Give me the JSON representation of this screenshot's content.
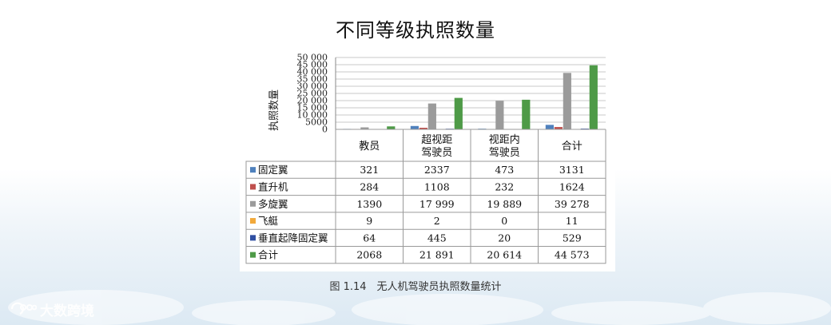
{
  "page": {
    "title": "不同等级执照数量",
    "caption": "图 1.14　无人机驾驶员执照数量统计",
    "watermark": "大数跨境"
  },
  "chart_data": {
    "type": "bar",
    "title": "不同等级执照数量",
    "xlabel": "",
    "ylabel": "执照数量",
    "ylim": [
      0,
      50000
    ],
    "yticks": [
      0,
      5000,
      10000,
      15000,
      20000,
      25000,
      30000,
      35000,
      40000,
      45000,
      50000
    ],
    "ytick_labels": [
      "0",
      "5000",
      "10 000",
      "15 000",
      "20 000",
      "25 000",
      "30 000",
      "35 000",
      "40 000",
      "45 000",
      "50 000"
    ],
    "grid": true,
    "legend": "table-left",
    "categories": [
      "教员",
      "超视距驾驶员",
      "视距内驾驶员",
      "合计"
    ],
    "category_labels": [
      [
        "教员"
      ],
      [
        "超视距",
        "驾驶员"
      ],
      [
        "视距内",
        "驾驶员"
      ],
      [
        "合计"
      ]
    ],
    "series": [
      {
        "name": "固定翼",
        "color": "#4f81bd",
        "values": [
          321,
          2337,
          473,
          3131
        ],
        "labels": [
          "321",
          "2337",
          "473",
          "3131"
        ]
      },
      {
        "name": "直升机",
        "color": "#c0504d",
        "values": [
          284,
          1108,
          232,
          1624
        ],
        "labels": [
          "284",
          "1108",
          "232",
          "1624"
        ]
      },
      {
        "name": "多旋翼",
        "color": "#9b9b9b",
        "values": [
          1390,
          17999,
          19889,
          39278
        ],
        "labels": [
          "1390",
          "17 999",
          "19 889",
          "39 278"
        ]
      },
      {
        "name": "飞艇",
        "color": "#f2a93b",
        "values": [
          9,
          2,
          0,
          11
        ],
        "labels": [
          "9",
          "2",
          "0",
          "11"
        ]
      },
      {
        "name": "垂直起降固定翼",
        "color": "#2f4fa2",
        "values": [
          64,
          445,
          20,
          529
        ],
        "labels": [
          "64",
          "445",
          "20",
          "529"
        ]
      },
      {
        "name": "合计",
        "color": "#4e9a47",
        "values": [
          2068,
          21891,
          20614,
          44573
        ],
        "labels": [
          "2068",
          "21 891",
          "20 614",
          "44 573"
        ]
      }
    ]
  }
}
